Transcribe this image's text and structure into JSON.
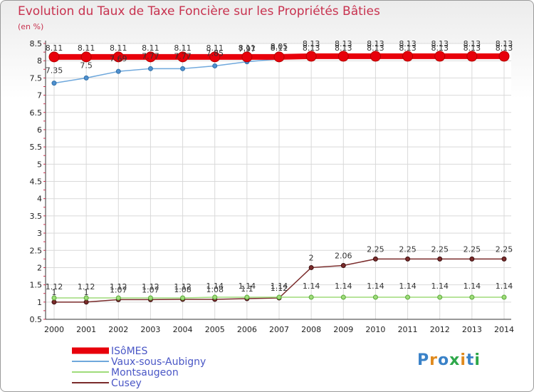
{
  "title": "Evolution du Taux de Taxe Foncière sur les Propriétés Bâties",
  "unit_label": "(en %)",
  "logo": {
    "text": "Proxiti",
    "letter_colors": [
      "#3a82c8",
      "#e08a1e",
      "#3a82c8",
      "#2ea84a",
      "#e08a1e",
      "#3a82c8",
      "#2ea84a"
    ]
  },
  "colors": {
    "title": "#c8324f",
    "axis_tick": "#c8324f",
    "grid": "#d9d9d9"
  },
  "chart_data": {
    "type": "line",
    "title": "Evolution du Taux de Taxe Foncière sur les Propriétés Bâties",
    "ylabel": "(en %)",
    "xlabel": "",
    "ylim": [
      0.5,
      8.5
    ],
    "y_ticks": [
      "0.5",
      "1",
      "1.5",
      "2",
      "2.5",
      "3",
      "3.5",
      "4",
      "4.5",
      "5",
      "5.5",
      "6",
      "6.5",
      "7",
      "7.5",
      "8",
      "8.5"
    ],
    "x": [
      "2000",
      "2001",
      "2002",
      "2003",
      "2004",
      "2005",
      "2006",
      "2007",
      "2008",
      "2009",
      "2010",
      "2011",
      "2012",
      "2013",
      "2014"
    ],
    "grid": true,
    "series": [
      {
        "name": "ISôMES",
        "color": "#e8000b",
        "values": [
          8.11,
          8.11,
          8.11,
          8.11,
          8.11,
          8.11,
          8.11,
          8.11,
          8.13,
          8.13,
          8.13,
          8.13,
          8.13,
          8.13,
          8.13
        ],
        "labels": [
          "8.11",
          "8.11",
          "8.11",
          "8.11",
          "8.11",
          "8.11",
          "8.11",
          "8.11",
          "8.13",
          "8.13",
          "8.13",
          "8.13",
          "8.13",
          "8.13",
          "8.13"
        ]
      },
      {
        "name": "Vaux-sous-Aubigny",
        "color": "#6fa8dc",
        "values": [
          7.35,
          7.5,
          7.69,
          7.77,
          7.77,
          7.85,
          7.97,
          8.05,
          8.13,
          8.13,
          8.13,
          8.13,
          8.13,
          8.13,
          8.13
        ],
        "labels": [
          "7.35",
          "7.5",
          "7.69",
          "7.77",
          "7.77",
          "7.85",
          "7.97",
          "8.05",
          "8.13",
          "8.13",
          "8.13",
          "8.13",
          "8.13",
          "8.13",
          "8.13"
        ]
      },
      {
        "name": "Montsaugeon",
        "color": "#9fdc7a",
        "values": [
          1.12,
          1.12,
          1.12,
          1.12,
          1.12,
          1.14,
          1.14,
          1.14,
          1.14,
          1.14,
          1.14,
          1.14,
          1.14,
          1.14,
          1.14
        ],
        "labels": [
          "1.12",
          "1.12",
          "1.12",
          "1.12",
          "1.12",
          "1.14",
          "1.14",
          "1.14",
          "1.14",
          "1.14",
          "1.14",
          "1.14",
          "1.14",
          "1.14",
          "1.14"
        ]
      },
      {
        "name": "Cusey",
        "color": "#7a2b2b",
        "values": [
          1.0,
          1.0,
          1.07,
          1.07,
          1.08,
          1.08,
          1.1,
          1.12,
          2.0,
          2.06,
          2.25,
          2.25,
          2.25,
          2.25,
          2.25
        ],
        "labels": [
          "1",
          "1",
          "1.07",
          "1.07",
          "1.08",
          "1.08",
          "1.1",
          "1.12",
          "2",
          "2.06",
          "2.25",
          "2.25",
          "2.25",
          "2.25",
          "2.25"
        ]
      }
    ],
    "legend": "bottom-left"
  }
}
